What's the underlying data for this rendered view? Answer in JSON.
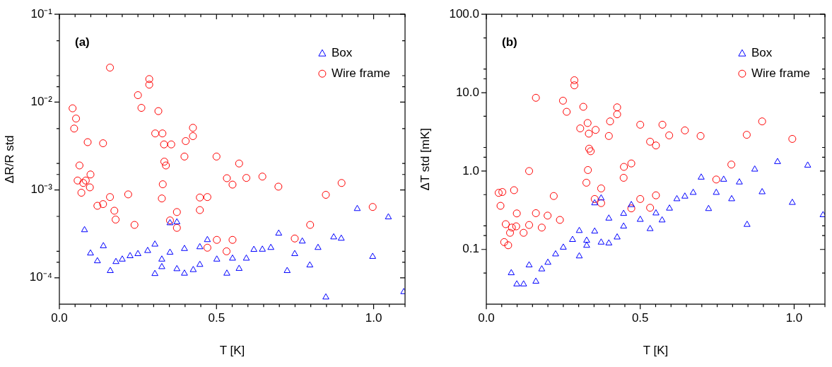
{
  "chart_data": [
    {
      "type": "scatter",
      "annotations": [
        "(a)"
      ],
      "xlabel": "T [K]",
      "ylabel": "ΔR/R std",
      "log": "y",
      "legend": "top right",
      "grid": false,
      "xlim": [
        0,
        1.1
      ],
      "xticks": [
        {
          "value": 0,
          "label": "0.0"
        },
        {
          "value": 0.05,
          "label": null
        },
        {
          "value": 0.1,
          "label": null
        },
        {
          "value": 0.15,
          "label": null
        },
        {
          "value": 0.2,
          "label": null
        },
        {
          "value": 0.25,
          "label": null
        },
        {
          "value": 0.3,
          "label": null
        },
        {
          "value": 0.35,
          "label": null
        },
        {
          "value": 0.4,
          "label": null
        },
        {
          "value": 0.45,
          "label": null
        },
        {
          "value": 0.5,
          "label": "0.5"
        },
        {
          "value": 0.55,
          "label": null
        },
        {
          "value": 0.6,
          "label": null
        },
        {
          "value": 0.65,
          "label": null
        },
        {
          "value": 0.7,
          "label": null
        },
        {
          "value": 0.75,
          "label": null
        },
        {
          "value": 0.8,
          "label": null
        },
        {
          "value": 0.85,
          "label": null
        },
        {
          "value": 0.9,
          "label": null
        },
        {
          "value": 0.95,
          "label": null
        },
        {
          "value": 1,
          "label": "1.0"
        },
        {
          "value": 1.05,
          "label": null
        },
        {
          "value": 1.1,
          "label": null
        }
      ],
      "ylim": [
        5e-05,
        0.1
      ],
      "yticks": [
        {
          "value": 0.0001,
          "label": "10⁻⁴"
        },
        {
          "value": 0.00015,
          "label": null
        },
        {
          "value": 0.0002,
          "label": null
        },
        {
          "value": 0.0005,
          "label": null
        },
        {
          "value": 0.001,
          "label": "10⁻³"
        },
        {
          "value": 0.0015,
          "label": null
        },
        {
          "value": 0.002,
          "label": null
        },
        {
          "value": 0.005,
          "label": null
        },
        {
          "value": 0.01,
          "label": "10⁻²"
        },
        {
          "value": 0.015,
          "label": null
        },
        {
          "value": 0.02,
          "label": null
        },
        {
          "value": 0.05,
          "label": null
        },
        {
          "value": 0.1,
          "label": "10⁻¹"
        }
      ],
      "series": [
        {
          "name": "Box",
          "color": "#0000ff",
          "marker": "triangle",
          "x": [
            0.08,
            0.099,
            0.121,
            0.14,
            0.162,
            0.18,
            0.2,
            0.225,
            0.25,
            0.281,
            0.304,
            0.304,
            0.326,
            0.326,
            0.352,
            0.352,
            0.374,
            0.374,
            0.398,
            0.398,
            0.426,
            0.447,
            0.447,
            0.471,
            0.501,
            0.533,
            0.551,
            0.572,
            0.595,
            0.619,
            0.646,
            0.673,
            0.698,
            0.725,
            0.749,
            0.773,
            0.797,
            0.823,
            0.848,
            0.873,
            0.897,
            0.948,
            0.997,
            1.047,
            1.096
          ],
          "values": [
            0.00035,
            0.00019,
            0.000155,
            0.00023,
            0.00012,
            0.000152,
            0.000162,
            0.000177,
            0.000187,
            0.000203,
            0.00024,
            0.000111,
            0.000162,
            0.000133,
            0.000194,
            0.00042,
            0.00043,
            0.000126,
            0.000214,
            0.000112,
            0.000123,
            0.000224,
            0.000141,
            0.00027,
            0.000162,
            0.000112,
            0.000166,
            0.000127,
            0.000166,
            0.000209,
            0.00021,
            0.00022,
            0.00032,
            0.00012,
            0.000187,
            0.00026,
            0.000139,
            0.00022,
            6e-05,
            0.00029,
            0.00028,
            0.00061,
            0.000174,
            0.00049,
            6.9e-05
          ]
        },
        {
          "name": "Wire frame",
          "color": "#ff0000",
          "marker": "circle",
          "x": [
            0.161,
            0.286,
            0.286,
            0.25,
            0.261,
            0.315,
            0.042,
            0.053,
            0.047,
            0.09,
            0.139,
            0.305,
            0.328,
            0.333,
            0.356,
            0.402,
            0.425,
            0.425,
            0.398,
            0.5,
            0.572,
            0.334,
            0.339,
            0.064,
            0.058,
            0.076,
            0.084,
            0.099,
            0.097,
            0.07,
            0.121,
            0.139,
            0.161,
            0.219,
            0.175,
            0.179,
            0.239,
            0.329,
            0.326,
            0.352,
            0.374,
            0.374,
            0.447,
            0.471,
            0.447,
            0.533,
            0.551,
            0.595,
            0.646,
            0.697,
            0.848,
            0.898,
            0.997,
            0.798,
            0.749,
            0.501,
            0.551,
            0.471,
            0.532
          ],
          "values": [
            0.0247,
            0.0183,
            0.0158,
            0.012,
            0.0086,
            0.0079,
            0.0085,
            0.0065,
            0.005,
            0.0035,
            0.0034,
            0.0044,
            0.0044,
            0.0033,
            0.0033,
            0.0036,
            0.0051,
            0.0041,
            0.0024,
            0.0024,
            0.002,
            0.0021,
            0.0019,
            0.0019,
            0.00128,
            0.0012,
            0.00128,
            0.0015,
            0.00107,
            0.00093,
            0.00066,
            0.00069,
            0.00083,
            0.00089,
            0.00058,
            0.00046,
            0.0004,
            0.00116,
            0.0008,
            0.00045,
            0.00056,
            0.00037,
            0.00082,
            0.00083,
            0.00059,
            0.00136,
            0.00115,
            0.00137,
            0.00142,
            0.00109,
            0.00088,
            0.0012,
            0.00064,
            0.0004,
            0.00028,
            0.00027,
            0.00027,
            0.00022,
            0.0002
          ]
        }
      ]
    },
    {
      "type": "scatter",
      "annotations": [
        "(b)"
      ],
      "xlabel": "T [K]",
      "ylabel": "ΔT std [mK]",
      "log": "y",
      "legend": "top right",
      "grid": false,
      "xlim": [
        0,
        1.1
      ],
      "xticks": [
        {
          "value": 0,
          "label": "0.0"
        },
        {
          "value": 0.05,
          "label": null
        },
        {
          "value": 0.1,
          "label": null
        },
        {
          "value": 0.15,
          "label": null
        },
        {
          "value": 0.2,
          "label": null
        },
        {
          "value": 0.25,
          "label": null
        },
        {
          "value": 0.3,
          "label": null
        },
        {
          "value": 0.35,
          "label": null
        },
        {
          "value": 0.4,
          "label": null
        },
        {
          "value": 0.45,
          "label": null
        },
        {
          "value": 0.5,
          "label": "0.5"
        },
        {
          "value": 0.55,
          "label": null
        },
        {
          "value": 0.6,
          "label": null
        },
        {
          "value": 0.65,
          "label": null
        },
        {
          "value": 0.7,
          "label": null
        },
        {
          "value": 0.75,
          "label": null
        },
        {
          "value": 0.8,
          "label": null
        },
        {
          "value": 0.85,
          "label": null
        },
        {
          "value": 0.9,
          "label": null
        },
        {
          "value": 0.95,
          "label": null
        },
        {
          "value": 1,
          "label": "1.0"
        },
        {
          "value": 1.05,
          "label": null
        },
        {
          "value": 1.1,
          "label": null
        }
      ],
      "ylim": [
        0.02,
        100
      ],
      "yticks": [
        {
          "value": 0.05,
          "label": null
        },
        {
          "value": 0.1,
          "label": "0.1"
        },
        {
          "value": 0.15,
          "label": null
        },
        {
          "value": 0.2,
          "label": null
        },
        {
          "value": 0.5,
          "label": null
        },
        {
          "value": 1,
          "label": "1.0"
        },
        {
          "value": 1.5,
          "label": null
        },
        {
          "value": 2,
          "label": null
        },
        {
          "value": 5,
          "label": null
        },
        {
          "value": 10,
          "label": "10.0"
        },
        {
          "value": 15,
          "label": null
        },
        {
          "value": 20,
          "label": null
        },
        {
          "value": 50,
          "label": null
        },
        {
          "value": 100,
          "label": "100.0"
        }
      ],
      "series": [
        {
          "name": "Box",
          "color": "#0000ff",
          "marker": "triangle",
          "x": [
            0.081,
            0.099,
            0.121,
            0.139,
            0.161,
            0.18,
            0.2,
            0.225,
            0.25,
            0.28,
            0.302,
            0.302,
            0.326,
            0.326,
            0.352,
            0.352,
            0.373,
            0.373,
            0.398,
            0.398,
            0.425,
            0.446,
            0.446,
            0.471,
            0.5,
            0.532,
            0.551,
            0.571,
            0.595,
            0.619,
            0.645,
            0.672,
            0.698,
            0.722,
            0.747,
            0.771,
            0.797,
            0.822,
            0.847,
            0.872,
            0.896,
            0.946,
            0.994,
            1.044,
            1.094
          ],
          "values": [
            0.05,
            0.036,
            0.036,
            0.063,
            0.039,
            0.056,
            0.068,
            0.087,
            0.106,
            0.133,
            0.173,
            0.082,
            0.13,
            0.112,
            0.17,
            0.39,
            0.45,
            0.123,
            0.12,
            0.249,
            0.143,
            0.286,
            0.197,
            0.37,
            0.24,
            0.183,
            0.29,
            0.236,
            0.334,
            0.44,
            0.475,
            0.53,
            0.83,
            0.33,
            0.53,
            0.78,
            0.44,
            0.72,
            0.207,
            1.05,
            0.54,
            1.31,
            0.395,
            1.18,
            0.275
          ]
        },
        {
          "name": "Wire frame",
          "color": "#ff0000",
          "marker": "circle",
          "x": [
            0.161,
            0.249,
            0.261,
            0.286,
            0.286,
            0.315,
            0.329,
            0.305,
            0.333,
            0.355,
            0.334,
            0.339,
            0.402,
            0.425,
            0.425,
            0.398,
            0.5,
            0.572,
            0.532,
            0.551,
            0.594,
            0.645,
            0.696,
            0.846,
            0.896,
            0.994,
            0.796,
            0.447,
            0.471,
            0.139,
            0.33,
            0.04,
            0.052,
            0.046,
            0.09,
            0.063,
            0.058,
            0.071,
            0.077,
            0.083,
            0.097,
            0.099,
            0.121,
            0.139,
            0.161,
            0.18,
            0.199,
            0.219,
            0.239,
            0.325,
            0.352,
            0.373,
            0.373,
            0.446,
            0.471,
            0.5,
            0.532,
            0.551,
            0.747
          ],
          "values": [
            8.6,
            7.9,
            5.7,
            14.4,
            12.4,
            6.6,
            4.1,
            3.5,
            3,
            3.35,
            1.93,
            1.79,
            4.3,
            6.5,
            5.3,
            2.8,
            3.9,
            3.9,
            2.37,
            2.12,
            2.85,
            3.3,
            2.8,
            2.9,
            4.3,
            2.57,
            1.21,
            1.13,
            1.25,
            1,
            1.03,
            0.527,
            0.54,
            0.36,
            0.57,
            0.21,
            0.124,
            0.113,
            0.163,
            0.19,
            0.197,
            0.288,
            0.163,
            0.205,
            0.29,
            0.19,
            0.27,
            0.48,
            0.238,
            0.71,
            0.44,
            0.6,
            0.39,
            0.82,
            0.334,
            0.44,
            0.34,
            0.49,
            0.78
          ]
        }
      ]
    }
  ]
}
